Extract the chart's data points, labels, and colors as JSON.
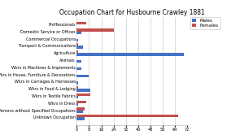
{
  "title": "Occupation Chart for Husbourne Crawley 1881",
  "categories": [
    "Proffessionals",
    "Domestic Service or Offices",
    "Commercial Occupations",
    "Transport & Communications",
    "Agriculture",
    "Animals",
    "Wkrs in Machines & Implements",
    "Wkrs in House, Furniture & Decorations",
    "Wkrs in Carriages & Harnesses",
    "Wkrs in Food & Lodging",
    "Wkrs in Textile Fabrics",
    "Wkrs in Dress",
    "Persons without Specified Occupations",
    "Unknown Occupation"
  ],
  "males": [
    0,
    3,
    1,
    4,
    70,
    3,
    3,
    8,
    1,
    9,
    1,
    1,
    4,
    5
  ],
  "females": [
    6,
    24,
    0,
    1,
    1,
    0,
    0,
    0,
    0,
    1,
    9,
    6,
    5,
    66
  ],
  "male_color": "#4472c4",
  "female_color": "#c0504d",
  "xlim": [
    0,
    72
  ],
  "xticks": [
    0,
    8,
    16,
    24,
    32,
    40,
    48,
    56,
    64,
    72
  ],
  "grid_color": "#c0c0c0",
  "bg_color": "#ffffff",
  "title_fontsize": 5.5,
  "label_fontsize": 3.5,
  "tick_fontsize": 3.5,
  "legend_fontsize": 4.0
}
